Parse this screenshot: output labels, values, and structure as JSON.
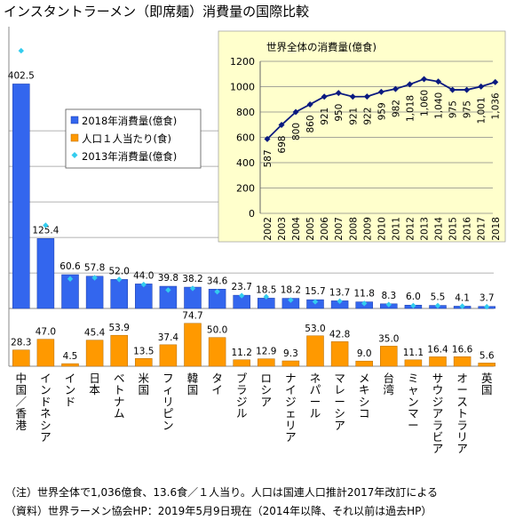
{
  "title": "インスタントラーメン（即席麺）消費量の国際比較",
  "notes": {
    "note1": "（注）世界全体で1,036億食、13.6食／１人当り。人口は国連人口推計2017年改訂による",
    "note2": "（資料）世界ラーメン協会HP：2019年5月9日現在（2014年以降、それ以前は過去HP）"
  },
  "colors": {
    "blue": "#3366ee",
    "orange": "#ff9900",
    "diamond": "#33ccee",
    "inset_bg": "#ffffcc",
    "line": "#0a1a80"
  },
  "chart_data": [
    {
      "type": "bar",
      "categories": [
        "中国／香港",
        "インドネシア",
        "インド",
        "日本",
        "ベトナム",
        "米国",
        "フィリピン",
        "韓国",
        "タイ",
        "ブラジル",
        "ロシア",
        "ナイジェリア",
        "ネパール",
        "マレーシア",
        "メキシコ",
        "台湾",
        "ミャンマー",
        "サウジアラビア",
        "オーストラリア",
        "英国"
      ],
      "legend": [
        "2018年消費量(億食)",
        "人口１人当たり(食)",
        "2013年消費量(億食)"
      ],
      "series": [
        {
          "name": "2018年消費量(億食)",
          "values": [
            402.5,
            125.4,
            60.6,
            57.8,
            52.0,
            44.0,
            39.8,
            38.2,
            34.6,
            23.7,
            18.5,
            18.2,
            15.7,
            13.7,
            11.8,
            8.3,
            6.0,
            5.5,
            4.1,
            3.7
          ]
        },
        {
          "name": "2013年消費量(億食)",
          "values": [
            462,
            149,
            53,
            55,
            52,
            43,
            33,
            36,
            30,
            23,
            21,
            15,
            12,
            13,
            9,
            7,
            5,
            5,
            4,
            3
          ]
        },
        {
          "name": "人口１人当たり(食)",
          "values": [
            28.3,
            47.0,
            4.5,
            45.4,
            53.9,
            13.5,
            37.4,
            74.7,
            50.0,
            11.2,
            12.9,
            9.3,
            53.0,
            42.8,
            9.0,
            35.0,
            11.1,
            16.4,
            16.6,
            5.6
          ]
        }
      ],
      "top_ylim": [
        0,
        420
      ],
      "bottom_ylim": [
        0,
        80
      ]
    },
    {
      "type": "line",
      "title": "世界全体の消費量(億食)",
      "x": [
        "2002",
        "2003",
        "2004",
        "2005",
        "2006",
        "2007",
        "2008",
        "2009",
        "2010",
        "2011",
        "2012",
        "2013",
        "2014",
        "2015",
        "2016",
        "2017",
        "2018"
      ],
      "values": [
        587,
        698,
        800,
        860,
        921,
        950,
        921,
        922,
        959,
        982,
        1018,
        1060,
        1040,
        975,
        975,
        1001,
        1036
      ],
      "data_labels": [
        "587",
        "698",
        "800",
        "860",
        "921",
        "950",
        "921",
        "922",
        "959",
        "982",
        "1,018",
        "1,060",
        "1,040",
        "975",
        "975",
        "1,001",
        "1,036"
      ],
      "y_ticks": [
        "0",
        "200",
        "400",
        "600",
        "800",
        "1000",
        "1200"
      ],
      "ylim": [
        0,
        1200
      ],
      "grid": true
    }
  ]
}
